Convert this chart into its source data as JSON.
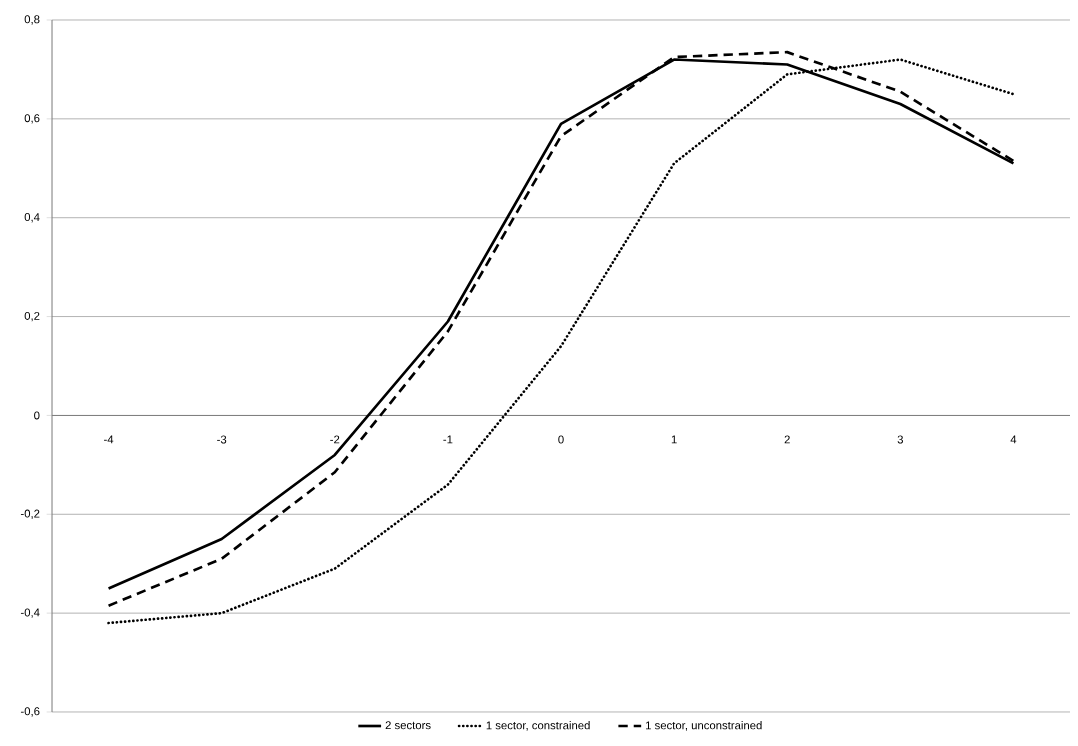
{
  "chart_data": {
    "type": "line",
    "categories": [
      "-4",
      "-3",
      "-2",
      "-1",
      "0",
      "1",
      "2",
      "3",
      "4"
    ],
    "series": [
      {
        "name": "2 sectors",
        "color": "#000000",
        "line_style": "solid",
        "values": [
          -0.35,
          -0.25,
          -0.08,
          0.19,
          0.59,
          0.72,
          0.71,
          0.63,
          0.51
        ]
      },
      {
        "name": "1 sector, constrained",
        "color": "#000000",
        "line_style": "dotted",
        "values": [
          -0.42,
          -0.4,
          -0.31,
          -0.14,
          0.14,
          0.51,
          0.69,
          0.72,
          0.65
        ]
      },
      {
        "name": "1 sector, unconstrained",
        "color": "#000000",
        "line_style": "dashed",
        "values": [
          -0.385,
          -0.29,
          -0.115,
          0.17,
          0.565,
          0.725,
          0.735,
          0.655,
          0.515
        ]
      }
    ],
    "ylim": [
      -0.6,
      0.8
    ],
    "yticks": [
      {
        "value": -0.6,
        "label": "-0,6"
      },
      {
        "value": -0.4,
        "label": "-0,4"
      },
      {
        "value": -0.2,
        "label": "-0,2"
      },
      0,
      {
        "value": 0.2,
        "label": "0,2"
      },
      {
        "value": 0.4,
        "label": "0,4"
      },
      {
        "value": 0.6,
        "label": "0,6"
      },
      {
        "value": 0.8,
        "label": "0,8"
      }
    ],
    "grid": "y",
    "legend": "bottom"
  }
}
